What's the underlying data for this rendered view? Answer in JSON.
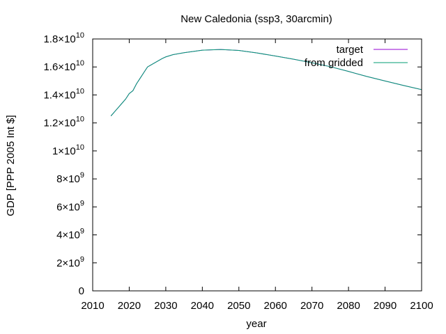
{
  "chart_data": {
    "type": "line",
    "title": "New Caledonia (ssp3, 30arcmin)",
    "xlabel": "year",
    "ylabel": "GDP [PPP 2005 Int $]",
    "xlim": [
      2010,
      2100
    ],
    "ylim": [
      0,
      18000000000
    ],
    "x_ticks": [
      2010,
      2020,
      2030,
      2040,
      2050,
      2060,
      2070,
      2080,
      2090,
      2100
    ],
    "x_tick_labels": [
      "2010",
      "2020",
      "2030",
      "2040",
      "2050",
      "2060",
      "2070",
      "2080",
      "2090",
      "2100"
    ],
    "y_ticks": [
      {
        "value": 0,
        "mantissa": "0",
        "exponent": ""
      },
      {
        "value": 2000000000,
        "mantissa": "2×10",
        "exponent": "9"
      },
      {
        "value": 4000000000,
        "mantissa": "4×10",
        "exponent": "9"
      },
      {
        "value": 6000000000,
        "mantissa": "6×10",
        "exponent": "9"
      },
      {
        "value": 8000000000,
        "mantissa": "8×10",
        "exponent": "9"
      },
      {
        "value": 10000000000,
        "mantissa": "1×10",
        "exponent": "10"
      },
      {
        "value": 12000000000,
        "mantissa": "1.2×10",
        "exponent": "10"
      },
      {
        "value": 14000000000,
        "mantissa": "1.4×10",
        "exponent": "10"
      },
      {
        "value": 16000000000,
        "mantissa": "1.6×10",
        "exponent": "10"
      },
      {
        "value": 18000000000,
        "mantissa": "1.8×10",
        "exponent": "10"
      }
    ],
    "legend_position": "top-right",
    "grid": false,
    "series": [
      {
        "name": "target",
        "color": "#9400d3",
        "x": [
          2015,
          2016,
          2017,
          2018,
          2019,
          2020,
          2021,
          2022,
          2023,
          2024,
          2025,
          2026,
          2027,
          2028,
          2029,
          2030,
          2032,
          2035,
          2040,
          2045,
          2050,
          2055,
          2060,
          2065,
          2070,
          2075,
          2080,
          2085,
          2090,
          2095,
          2100
        ],
        "values": [
          12500000000,
          12800000000,
          13100000000,
          13400000000,
          13700000000,
          14100000000,
          14300000000,
          14800000000,
          15200000000,
          15600000000,
          16000000000,
          16150000000,
          16300000000,
          16450000000,
          16600000000,
          16720000000,
          16880000000,
          17020000000,
          17200000000,
          17250000000,
          17180000000,
          17000000000,
          16780000000,
          16550000000,
          16300000000,
          16020000000,
          15680000000,
          15320000000,
          15000000000,
          14680000000,
          14380000000
        ]
      },
      {
        "name": "from gridded",
        "color": "#009e73",
        "x": [
          2015,
          2016,
          2017,
          2018,
          2019,
          2020,
          2021,
          2022,
          2023,
          2024,
          2025,
          2026,
          2027,
          2028,
          2029,
          2030,
          2032,
          2035,
          2040,
          2045,
          2050,
          2055,
          2060,
          2065,
          2070,
          2075,
          2080,
          2085,
          2090,
          2095,
          2100
        ],
        "values": [
          12500000000,
          12800000000,
          13100000000,
          13400000000,
          13700000000,
          14100000000,
          14300000000,
          14800000000,
          15200000000,
          15600000000,
          16000000000,
          16150000000,
          16300000000,
          16450000000,
          16600000000,
          16720000000,
          16880000000,
          17020000000,
          17200000000,
          17250000000,
          17180000000,
          17000000000,
          16780000000,
          16550000000,
          16300000000,
          16020000000,
          15680000000,
          15320000000,
          15000000000,
          14680000000,
          14380000000
        ]
      }
    ]
  }
}
